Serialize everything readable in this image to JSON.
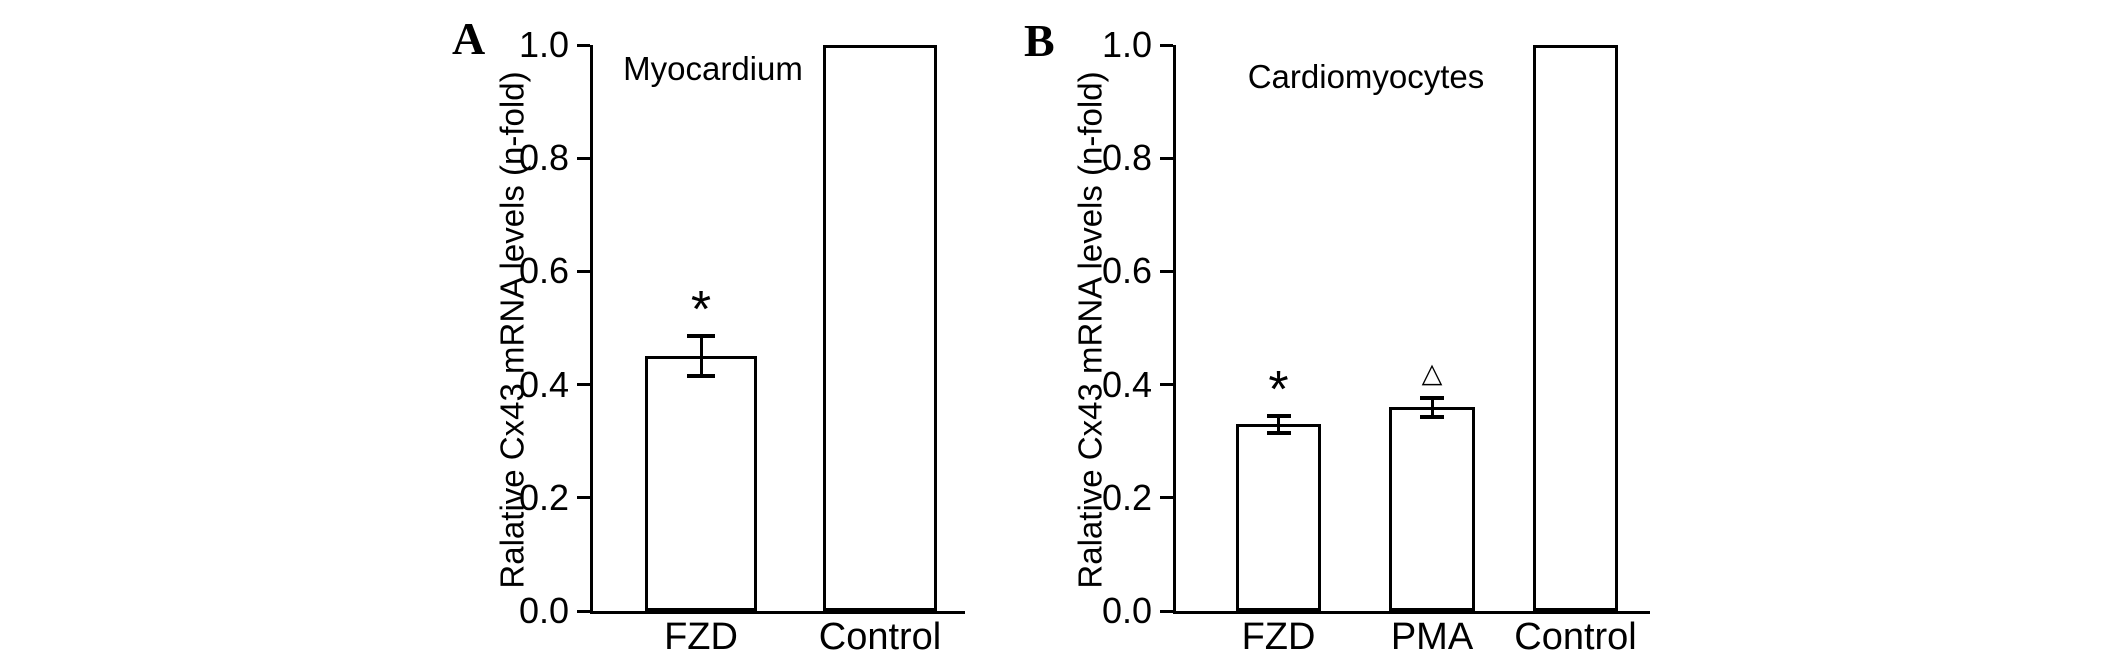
{
  "figure": {
    "background_color": "#ffffff",
    "ink_color": "#000000",
    "bar_fill_color": "#ffffff"
  },
  "chart_data": [
    {
      "type": "bar",
      "panel_letter": "A",
      "title": "Myocardium",
      "ylabel": "Ralative Cx43 mRNA levels (n-fold)",
      "xlabel": "",
      "ylim": [
        0.0,
        1.0
      ],
      "grid": false,
      "legend": "none",
      "yticks": [
        {
          "value": 1.0,
          "label": "1.0"
        },
        {
          "value": 0.8,
          "label": "0.8"
        },
        {
          "value": 0.6,
          "label": "0.6"
        },
        {
          "value": 0.4,
          "label": "0.4"
        },
        {
          "value": 0.2,
          "label": "0.2"
        },
        {
          "value": 0.0,
          "label": "0.0"
        }
      ],
      "categories": [
        "FZD",
        "Control"
      ],
      "values": [
        0.45,
        1.0
      ],
      "errors": [
        0.035,
        0
      ],
      "annotations": [
        "*",
        ""
      ]
    },
    {
      "type": "bar",
      "panel_letter": "B",
      "title": "Cardiomyocytes",
      "ylabel": "Ralative Cx43 mRNA levels (n-fold)",
      "xlabel": "",
      "ylim": [
        0.0,
        1.0
      ],
      "grid": false,
      "legend": "none",
      "yticks": [
        {
          "value": 1.0,
          "label": "1.0"
        },
        {
          "value": 0.8,
          "label": "0.8"
        },
        {
          "value": 0.6,
          "label": "0.6"
        },
        {
          "value": 0.4,
          "label": "0.4"
        },
        {
          "value": 0.2,
          "label": "0.2"
        },
        {
          "value": 0.0,
          "label": "0.0"
        }
      ],
      "categories": [
        "FZD",
        "PMA",
        "Control"
      ],
      "values": [
        0.33,
        0.36,
        1.0
      ],
      "errors": [
        0.015,
        0.017,
        0
      ],
      "annotations": [
        "*",
        "△",
        ""
      ]
    }
  ]
}
